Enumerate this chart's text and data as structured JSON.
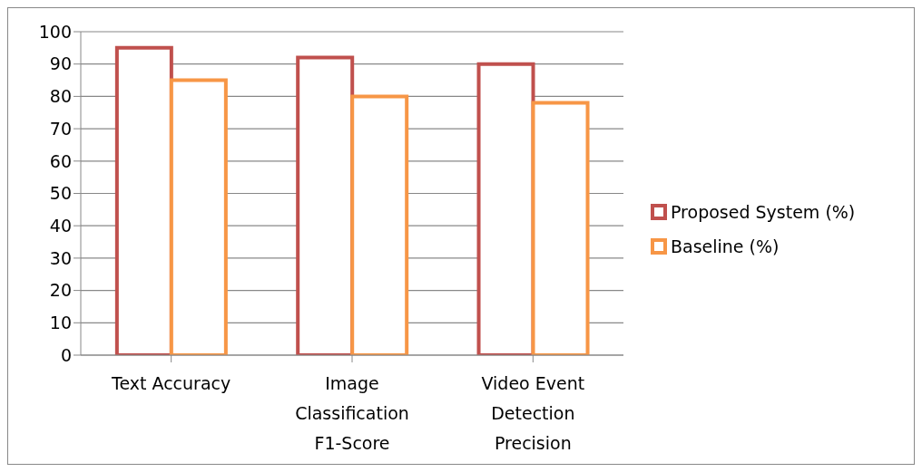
{
  "chart_data": {
    "type": "bar",
    "categories": [
      "Text Accuracy",
      "Image Classification F1-Score",
      "Video Event Detection Precision"
    ],
    "series": [
      {
        "name": "Proposed System (%)",
        "color": "#c0504d",
        "values": [
          95,
          92,
          90
        ]
      },
      {
        "name": "Baseline (%)",
        "color": "#f79646",
        "values": [
          85,
          80,
          78
        ]
      }
    ],
    "ylim": [
      0,
      100
    ],
    "yticks": [
      0,
      10,
      20,
      30,
      40,
      50,
      60,
      70,
      80,
      90,
      100
    ],
    "grid": "y",
    "legend": "right"
  }
}
